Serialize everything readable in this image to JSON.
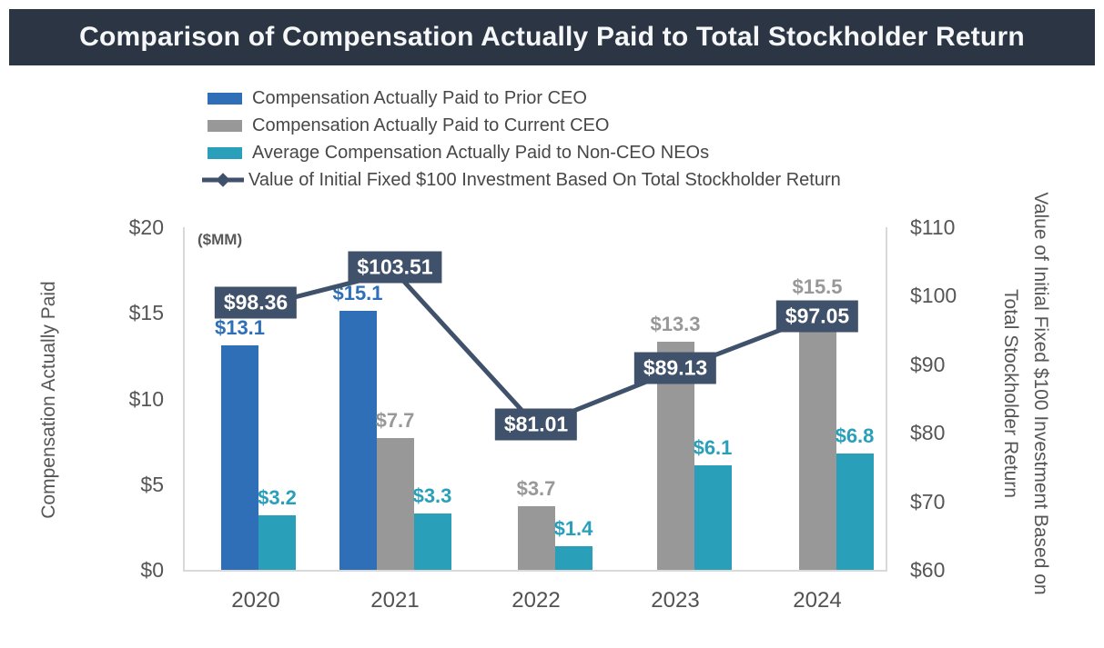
{
  "title": "Comparison of Compensation Actually Paid to Total Stockholder Return",
  "colors": {
    "title_bar_bg": "#2b3543",
    "title_text": "#f5f7f8",
    "prior_ceo": "#2e6fb7",
    "current_ceo": "#989898",
    "neo": "#2a9fba",
    "tsr": "#40526b",
    "axis_text": "#565656",
    "plot_border": "#d9d9d9"
  },
  "legend": {
    "items": [
      {
        "label": "Compensation Actually Paid to Prior CEO",
        "color_key": "prior_ceo",
        "marker": "swatch"
      },
      {
        "label": "Compensation Actually Paid to Current CEO",
        "color_key": "current_ceo",
        "marker": "swatch"
      },
      {
        "label": "Average Compensation Actually Paid to Non-CEO NEOs",
        "color_key": "neo",
        "marker": "swatch"
      },
      {
        "label": "Value of Initial Fixed $100 Investment Based On Total Stockholder Return",
        "color_key": "tsr",
        "marker": "line-diamond"
      }
    ]
  },
  "chart_data": {
    "type": "bar+line combo",
    "categories": [
      "2020",
      "2021",
      "2022",
      "2023",
      "2024"
    ],
    "series": [
      {
        "name": "Compensation Actually Paid to Prior CEO",
        "type": "bar",
        "axis": "left",
        "color_key": "prior_ceo",
        "values": [
          13.1,
          15.1,
          null,
          null,
          null
        ],
        "labels": [
          "$13.1",
          "$15.1",
          null,
          null,
          null
        ]
      },
      {
        "name": "Compensation Actually Paid to Current CEO",
        "type": "bar",
        "axis": "left",
        "color_key": "current_ceo",
        "values": [
          null,
          7.7,
          3.7,
          13.3,
          15.5
        ],
        "labels": [
          null,
          "$7.7",
          "$3.7",
          "$13.3",
          "$15.5"
        ]
      },
      {
        "name": "Average Compensation Actually Paid to Non-CEO NEOs",
        "type": "bar",
        "axis": "left",
        "color_key": "neo",
        "values": [
          3.2,
          3.3,
          1.4,
          6.1,
          6.8
        ],
        "labels": [
          "$3.2",
          "$3.3",
          "$1.4",
          "$6.1",
          "$6.8"
        ]
      },
      {
        "name": "Value of Initial Fixed $100 Investment Based On Total Stockholder Return",
        "type": "line",
        "axis": "right",
        "color_key": "tsr",
        "values": [
          98.36,
          103.51,
          81.01,
          89.13,
          97.05
        ],
        "labels": [
          "$98.36",
          "$103.51",
          "$81.01",
          "$89.13",
          "$97.05"
        ]
      }
    ],
    "left_axis": {
      "title": "Compensation Actually Paid",
      "unit_note": "($MM)",
      "ticks": [
        "$20",
        "$15",
        "$10",
        "$5",
        "$0"
      ],
      "tick_values": [
        20,
        15,
        10,
        5,
        0
      ],
      "range": [
        0,
        20
      ]
    },
    "right_axis": {
      "title_lines": [
        "Value of Initial Fixed $100 Investment Based on",
        "Total Stockholder Return"
      ],
      "ticks": [
        "$110",
        "$100",
        "$90",
        "$80",
        "$70",
        "$60"
      ],
      "tick_values": [
        110,
        100,
        90,
        80,
        70,
        60
      ],
      "range": [
        60,
        110
      ]
    },
    "legend_position": "top-left",
    "grid": false
  }
}
